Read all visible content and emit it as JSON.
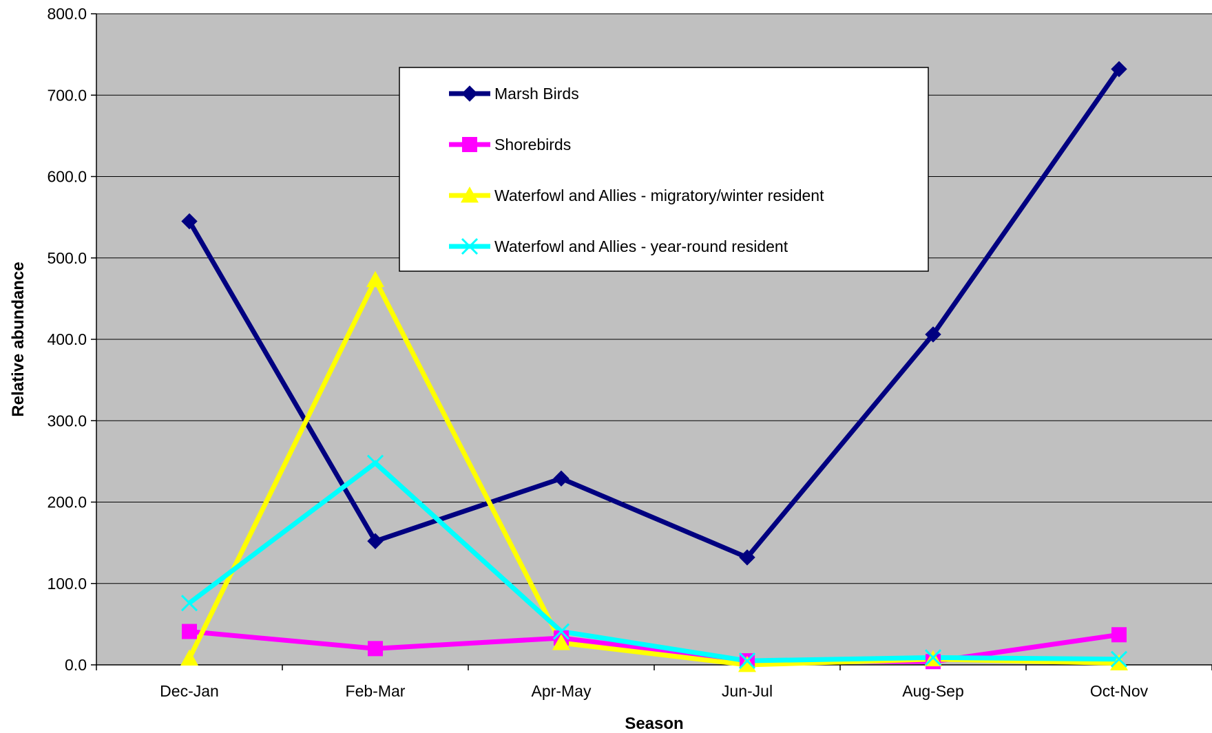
{
  "chart_data": {
    "type": "line",
    "categories": [
      "Dec-Jan",
      "Feb-Mar",
      "Apr-May",
      "Jun-Jul",
      "Aug-Sep",
      "Oct-Nov"
    ],
    "xlabel": "Season",
    "ylabel": "Relative abundance",
    "ylim": [
      0,
      800
    ],
    "yticks": [
      "0.0",
      "100.0",
      "200.0",
      "300.0",
      "400.0",
      "500.0",
      "600.0",
      "700.0",
      "800.0"
    ],
    "grid": true,
    "plot_background": "#c0c0c0",
    "legend_position": "top-center",
    "series": [
      {
        "name": "Marsh Birds",
        "values": [
          545,
          152,
          229,
          132,
          406,
          732
        ],
        "color": "#000080",
        "marker": "diamond"
      },
      {
        "name": "Shorebirds",
        "values": [
          41,
          20,
          33,
          5,
          4,
          37
        ],
        "color": "#ff00ff",
        "marker": "square"
      },
      {
        "name": "Waterfowl and Allies - migratory/winter resident",
        "values": [
          8,
          473,
          27,
          0,
          7,
          2
        ],
        "color": "#ffff00",
        "marker": "triangle"
      },
      {
        "name": "Waterfowl and Allies - year-round resident",
        "values": [
          76,
          248,
          41,
          5,
          9,
          7
        ],
        "color": "#00ffff",
        "marker": "x"
      }
    ]
  }
}
